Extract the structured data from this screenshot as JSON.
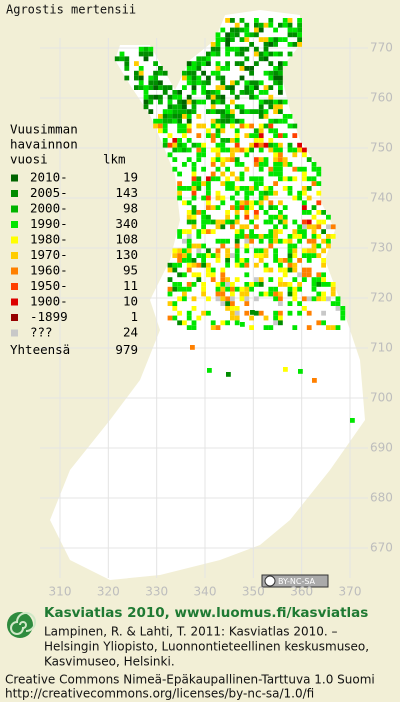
{
  "title": "Agrostis mertensii",
  "legend": {
    "heading": [
      "Vuusimman",
      "havainnon",
      "vuosi"
    ],
    "count_heading": "lkm",
    "items": [
      {
        "label": "2010-",
        "count": 19,
        "color": "#006400"
      },
      {
        "label": "2005-",
        "count": 143,
        "color": "#008c00"
      },
      {
        "label": "2000-",
        "count": 98,
        "color": "#00b400"
      },
      {
        "label": "1990-",
        "count": 340,
        "color": "#00e600"
      },
      {
        "label": "1980-",
        "count": 108,
        "color": "#ffff00"
      },
      {
        "label": "1970-",
        "count": 130,
        "color": "#ffcc00"
      },
      {
        "label": "1960-",
        "count": 95,
        "color": "#ff8000"
      },
      {
        "label": "1950-",
        "count": 11,
        "color": "#ff4000"
      },
      {
        "label": "1900-",
        "count": 10,
        "color": "#dc0000"
      },
      {
        "label": "-1899",
        "count": 1,
        "color": "#960000"
      },
      {
        "label": "???",
        "count": 24,
        "color": "#c8c8c8"
      }
    ],
    "total_label": "Yhteensä",
    "total": 979
  },
  "xticks": [
    310,
    320,
    330,
    340,
    350,
    360,
    370
  ],
  "yticks": [
    670,
    680,
    690,
    700,
    710,
    720,
    730,
    740,
    750,
    760,
    770
  ],
  "license_badge": "BY-NC-SA",
  "footer": {
    "heading": "Kasviatlas 2010, www.luomus.fi/kasviatlas",
    "citation": [
      "Lampinen, R. & Lahti, T. 2011: Kasviatlas 2010. –",
      "Helsingin Yliopisto, Luonnontieteellinen keskusmuseo,",
      "Kasvimuseo, Helsinki."
    ],
    "license": [
      "Creative Commons Nimeä-Epäkaupallinen-Tarttuva 1.0 Suomi",
      "http://creativecommons.org/licenses/by-nc-sa/1.0/fi"
    ]
  }
}
